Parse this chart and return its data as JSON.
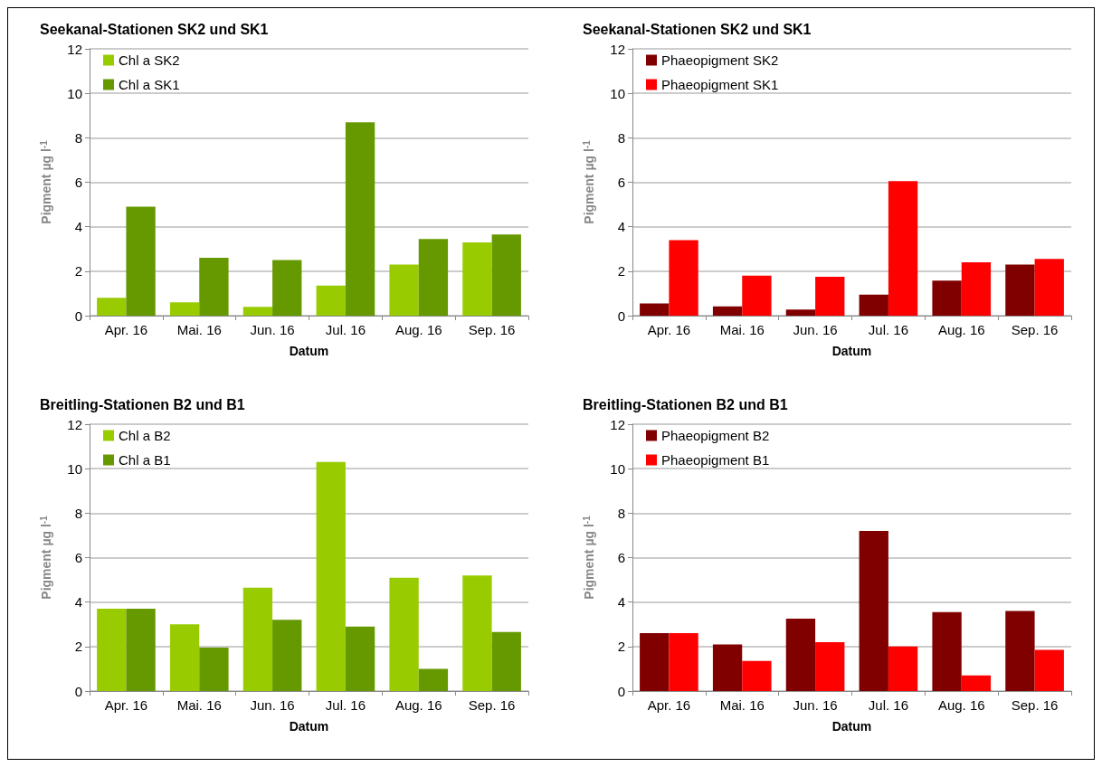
{
  "chart_data": [
    {
      "type": "bar",
      "title": "Seekanal-Stationen SK2 und SK1",
      "xlabel": "Datum",
      "ylabel": "Pigment µg l$^{-1}$",
      "categories": [
        "Apr. 16",
        "Mai. 16",
        "Jun. 16",
        "Jul. 16",
        "Aug. 16",
        "Sep. 16"
      ],
      "series": [
        {
          "name": "Chl a SK2",
          "color": "#99cc00",
          "values": [
            0.8,
            0.6,
            0.4,
            1.35,
            2.3,
            3.3
          ]
        },
        {
          "name": "Chl a SK1",
          "color": "#669900",
          "values": [
            4.9,
            2.6,
            2.5,
            8.7,
            3.45,
            3.65
          ]
        }
      ],
      "ylim": [
        0,
        12
      ],
      "yticks": [
        0,
        2,
        4,
        6,
        8,
        10,
        12
      ],
      "grid": "y",
      "legend": "top left"
    },
    {
      "type": "bar",
      "title": "Seekanal-Stationen SK2 und SK1",
      "xlabel": "Datum",
      "ylabel": "Pigment µg l$^{-1}$",
      "categories": [
        "Apr. 16",
        "Mai. 16",
        "Jun. 16",
        "Jul. 16",
        "Aug. 16",
        "Sep. 16"
      ],
      "series": [
        {
          "name": "Phaeopigment SK2",
          "color": "#800000",
          "values": [
            0.55,
            0.42,
            0.27,
            0.95,
            1.58,
            2.3
          ]
        },
        {
          "name": "Phaeopigment SK1",
          "color": "#ff0000",
          "values": [
            3.4,
            1.8,
            1.75,
            6.05,
            2.4,
            2.55
          ]
        }
      ],
      "ylim": [
        0,
        12
      ],
      "yticks": [
        0,
        2,
        4,
        6,
        8,
        10,
        12
      ],
      "grid": "y",
      "legend": "top left"
    },
    {
      "type": "bar",
      "title": "Breitling-Stationen B2 und B1",
      "xlabel": "Datum",
      "ylabel": "Pigment µg l$^{-1}$",
      "categories": [
        "Apr. 16",
        "Mai. 16",
        "Jun. 16",
        "Jul. 16",
        "Aug. 16",
        "Sep. 16"
      ],
      "series": [
        {
          "name": "Chl a B2",
          "color": "#99cc00",
          "values": [
            3.7,
            3.0,
            4.65,
            10.3,
            5.1,
            5.2
          ]
        },
        {
          "name": "Chl a B1",
          "color": "#669900",
          "values": [
            3.7,
            1.95,
            3.2,
            2.9,
            1.0,
            2.65
          ]
        }
      ],
      "ylim": [
        0,
        12
      ],
      "yticks": [
        0,
        2,
        4,
        6,
        8,
        10,
        12
      ],
      "grid": "y",
      "legend": "top left"
    },
    {
      "type": "bar",
      "title": "Breitling-Stationen B2 und B1",
      "xlabel": "Datum",
      "ylabel": "Pigment µg l$^{-1}$",
      "categories": [
        "Apr. 16",
        "Mai. 16",
        "Jun. 16",
        "Jul. 16",
        "Aug. 16",
        "Sep. 16"
      ],
      "series": [
        {
          "name": "Phaeopigment B2",
          "color": "#800000",
          "values": [
            2.6,
            2.1,
            3.25,
            7.2,
            3.55,
            3.6
          ]
        },
        {
          "name": "Phaeopigment B1",
          "color": "#ff0000",
          "values": [
            2.6,
            1.35,
            2.2,
            2.0,
            0.7,
            1.85
          ]
        }
      ],
      "ylim": [
        0,
        12
      ],
      "yticks": [
        0,
        2,
        4,
        6,
        8,
        10,
        12
      ],
      "grid": "y",
      "legend": "top left"
    }
  ]
}
